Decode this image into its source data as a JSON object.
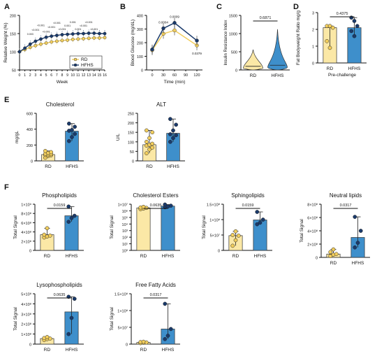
{
  "panels": {
    "A": "A",
    "B": "B",
    "C": "C",
    "D": "D",
    "E": "E",
    "F": "F"
  },
  "colors": {
    "RD": "#F2CE5E",
    "RD_fill": "#FBE8A6",
    "HFHS": "#1A3A6B",
    "HFHS_fill": "#3E8FCB",
    "axis": "#111111"
  },
  "chart_data": [
    {
      "id": "A",
      "type": "line",
      "ylabel": "Relative Weight (%)",
      "xlabel": "Week",
      "xlim": [
        0,
        16
      ],
      "ylim": [
        50,
        200
      ],
      "x": [
        0,
        1,
        2,
        3,
        4,
        5,
        6,
        7,
        8,
        9,
        10,
        11,
        12,
        13,
        14,
        15,
        16
      ],
      "xticks": [
        "0",
        "1",
        "2",
        "3",
        "4",
        "5",
        "6",
        "7",
        "8",
        "9",
        "10",
        "11",
        "12",
        "13",
        "14",
        "15",
        "16"
      ],
      "yticks": [
        50,
        100,
        150,
        200
      ],
      "series": [
        {
          "name": "RD",
          "values": [
            100,
            106,
            112,
            117,
            121,
            124,
            127,
            129,
            131,
            132,
            134,
            135,
            136,
            137,
            138,
            138,
            139
          ]
        },
        {
          "name": "HFHS",
          "values": [
            100,
            110,
            121,
            129,
            135,
            140,
            143,
            145,
            147,
            148,
            149,
            150,
            150,
            151,
            151,
            150,
            150
          ]
        }
      ],
      "pvalues": [
        "0.003",
        "<0.001",
        "<0.001",
        "<0.001",
        "<0.001",
        "<0.001",
        "<0.001",
        "0.001",
        "0.001",
        "0.001",
        "<0.001",
        "<0.001",
        "<0.001"
      ],
      "legend": [
        "RD",
        "HFHS"
      ],
      "legend_position": "bottom-right"
    },
    {
      "id": "B",
      "type": "line",
      "ylabel": "Blood Glucose (mg/dL)",
      "xlabel": "Time (min)",
      "x": [
        0,
        30,
        60,
        90,
        120
      ],
      "xticks": [
        "0",
        "30",
        "60",
        "90",
        "120"
      ],
      "ylim": [
        0,
        400
      ],
      "yticks": [
        0,
        100,
        200,
        300,
        400
      ],
      "series": [
        {
          "name": "RD",
          "values": [
            145,
            265,
            290,
            null,
            180
          ]
        },
        {
          "name": "HFHS",
          "values": [
            150,
            305,
            345,
            null,
            215
          ]
        }
      ],
      "pvalues": [
        "0.0004",
        "0.0009",
        "0.0379"
      ]
    },
    {
      "id": "C",
      "type": "violin",
      "ylabel": "Insulin Resistance Index",
      "categories": [
        "RD",
        "HFHS"
      ],
      "ylim": [
        0,
        1500
      ],
      "yticks": [
        0,
        500,
        1000,
        1500
      ],
      "medians": [
        100,
        130
      ],
      "max": [
        560,
        1120
      ],
      "pvalue": "0.6871"
    },
    {
      "id": "D",
      "type": "bar",
      "ylabel": "Fat Bodyweight Ratio mg/g",
      "xlabel": "Pre-challenge",
      "categories": [
        "RD",
        "HFHS"
      ],
      "values": [
        2.1,
        2.1
      ],
      "ylim": [
        0,
        3
      ],
      "yticks": [
        0,
        1,
        2,
        3
      ],
      "points": [
        [
          2.2,
          2.2,
          2.1,
          1.3,
          0.9
        ],
        [
          2.7,
          2.5,
          2.2,
          1.9,
          1.6
        ]
      ],
      "pvalue": "0.4375"
    },
    {
      "id": "E1",
      "type": "bar",
      "title": "Cholesterol",
      "ylabel": "mg/gL",
      "categories": [
        "RD",
        "HFHS"
      ],
      "values": [
        80,
        375
      ],
      "ylim": [
        0,
        600
      ],
      "yticks": [
        0,
        200,
        400,
        600
      ],
      "points": [
        [
          40,
          60,
          70,
          75,
          80,
          85,
          90,
          100,
          110,
          125
        ],
        [
          250,
          300,
          340,
          380,
          390,
          430,
          470
        ]
      ]
    },
    {
      "id": "E2",
      "type": "bar",
      "title": "ALT",
      "ylabel": "U/L",
      "categories": [
        "RD",
        "HFHS"
      ],
      "values": [
        85,
        145
      ],
      "ylim": [
        0,
        250
      ],
      "yticks": [
        0,
        50,
        100,
        150,
        200,
        250
      ],
      "points": [
        [
          40,
          60,
          70,
          80,
          85,
          90,
          100,
          120,
          150,
          160
        ],
        [
          100,
          120,
          135,
          140,
          160,
          190,
          220
        ]
      ]
    },
    {
      "id": "F1",
      "type": "bar",
      "title": "Phospholipids",
      "ylabel": "Total Signal",
      "categories": [
        "RD",
        "HFHS"
      ],
      "values": [
        340000000.0,
        750000000.0
      ],
      "ylim": [
        0,
        1000000000.0
      ],
      "yticks": [
        0,
        200000000.0,
        400000000.0,
        600000000.0,
        800000000.0,
        1000000000.0
      ],
      "ytick_labels": [
        "0",
        "2×10⁸",
        "4×10⁸",
        "6×10⁸",
        "8×10⁸",
        "1×10⁹"
      ],
      "points": [
        [
          280000000.0,
          300000000.0,
          320000000.0,
          340000000.0,
          480000000.0
        ],
        [
          620000000.0,
          700000000.0,
          750000000.0,
          950000000.0
        ]
      ],
      "pvalue": "0.0159"
    },
    {
      "id": "F2",
      "type": "bar",
      "title": "Cholesterol Esters",
      "ylabel": "Total Signal",
      "log": true,
      "categories": [
        "RD",
        "HFHS"
      ],
      "values": [
        2800000.0,
        5200000.0
      ],
      "ylim": [
        1,
        10000000.0
      ],
      "yticks": [
        1,
        10,
        100,
        1000,
        10000,
        100000,
        1000000,
        10000000
      ],
      "ytick_labels": [
        "10⁰",
        "10¹",
        "10²",
        "10³",
        "10⁴",
        "10⁵",
        "10⁶",
        "1×10⁷"
      ],
      "points": [
        [
          1800000.0,
          2200000.0,
          2800000.0,
          3200000.0,
          4000000.0
        ],
        [
          3500000.0,
          4500000.0,
          6000000.0,
          9000000.0
        ]
      ],
      "pvalue": "0.0635"
    },
    {
      "id": "F3",
      "type": "bar",
      "title": "Sphingolipids",
      "ylabel": "Total Signal",
      "categories": [
        "RD",
        "HFHS"
      ],
      "values": [
        48000000.0,
        99000000.0
      ],
      "ylim": [
        0,
        150000000.0
      ],
      "yticks": [
        0,
        50000000.0,
        100000000.0,
        150000000.0
      ],
      "ytick_labels": [
        "0",
        "5×10⁷",
        "1×10⁸",
        "1.5×10⁸"
      ],
      "points": [
        [
          15000000.0,
          33000000.0,
          48000000.0,
          50000000.0,
          62000000.0
        ],
        [
          85000000.0,
          90000000.0,
          100000000.0,
          125000000.0
        ]
      ],
      "pvalue": "0.0159"
    },
    {
      "id": "F4",
      "type": "bar",
      "title": "Neutral lipids",
      "ylabel": "Total Signal",
      "categories": [
        "RD",
        "HFHS"
      ],
      "values": [
        50000000.0,
        300000000.0
      ],
      "ylim": [
        0,
        800000000.0
      ],
      "yticks": [
        0,
        200000000.0,
        400000000.0,
        600000000.0,
        800000000.0
      ],
      "ytick_labels": [
        "0",
        "2×10⁸",
        "4×10⁸",
        "6×10⁸",
        "8×10⁸"
      ],
      "points": [
        [
          20000000.0,
          40000000.0,
          50000000.0,
          80000000.0,
          120000000.0
        ],
        [
          150000000.0,
          220000000.0,
          400000000.0,
          610000000.0
        ]
      ],
      "pvalue": "0.0317"
    },
    {
      "id": "F5",
      "type": "bar",
      "title": "Lysophospholipids",
      "ylabel": "Total Signal",
      "categories": [
        "RD",
        "HFHS"
      ],
      "values": [
        55000000.0,
        320000000.0
      ],
      "ylim": [
        0,
        500000000.0
      ],
      "yticks": [
        0,
        100000000.0,
        200000000.0,
        300000000.0,
        400000000.0,
        500000000.0
      ],
      "ytick_labels": [
        "0",
        "1×10⁸",
        "2×10⁸",
        "3×10⁸",
        "4×10⁸",
        "5×10⁸"
      ],
      "points": [
        [
          40000000.0,
          50000000.0,
          55000000.0,
          60000000.0,
          70000000.0
        ],
        [
          100000000.0,
          260000000.0,
          450000000.0,
          470000000.0
        ]
      ],
      "pvalue": "0.0635"
    },
    {
      "id": "F6",
      "type": "bar",
      "title": "Free Fatty Acids",
      "ylabel": "Total Signal",
      "categories": [
        "RD",
        "HFHS"
      ],
      "values": [
        5000000.0,
        45000000.0
      ],
      "ylim": [
        0,
        150000000.0
      ],
      "yticks": [
        0,
        50000000.0,
        100000000.0,
        150000000.0
      ],
      "ytick_labels": [
        "0",
        "5×10⁷",
        "1×10⁸",
        "1.5×10⁸"
      ],
      "points": [
        [
          3000000.0,
          4000000.0,
          5000000.0,
          6000000.0,
          7000000.0
        ],
        [
          15000000.0,
          25000000.0,
          45000000.0,
          120000000.0
        ]
      ],
      "pvalue": "0.0317"
    }
  ]
}
